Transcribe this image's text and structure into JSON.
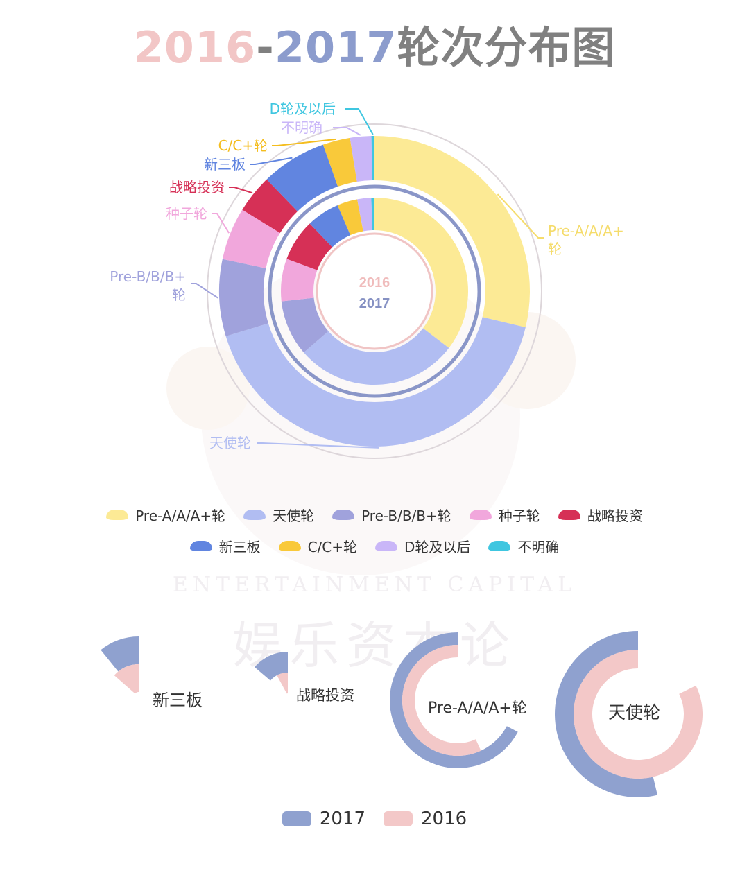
{
  "title": {
    "part1": "2016",
    "dash": "-",
    "part2": "2017",
    "part3": "轮次分布图"
  },
  "colors": {
    "title_2016": "#f2c6c6",
    "title_2017": "#8c9ccd",
    "title_rest": "#808080",
    "bar_2017": "#8fa1cf",
    "bar_2016": "#f3c8c8"
  },
  "center_labels": {
    "year_2016": "2016",
    "year_2017": "2017"
  },
  "watermark": {
    "english": "ENTERTAINMENT CAPITAL",
    "chinese": "娱乐资本论"
  },
  "chart_data": {
    "type": "donut",
    "rings": [
      "2016",
      "2017"
    ],
    "categories": [
      {
        "name": "Pre-A/A/A+轮",
        "color": "#fcea95",
        "icon": "fan-swatch"
      },
      {
        "name": "天使轮",
        "color": "#b1bdf2",
        "icon": "fan-swatch"
      },
      {
        "name": "Pre-B/B/B+轮",
        "color": "#a0a2dc",
        "icon": "fan-swatch"
      },
      {
        "name": "种子轮",
        "color": "#f1a7dc",
        "icon": "fan-swatch"
      },
      {
        "name": "战略投资",
        "color": "#d63056",
        "icon": "fan-swatch"
      },
      {
        "name": "新三板",
        "color": "#6185e0",
        "icon": "fan-swatch"
      },
      {
        "name": "C/C+轮",
        "color": "#f9c93a",
        "icon": "fan-swatch"
      },
      {
        "name": "D轮及以后",
        "color": "#c9b6f8",
        "icon": "fan-swatch"
      },
      {
        "name": "不明确",
        "color": "#3fc6e0",
        "icon": "fan-swatch"
      }
    ],
    "series": [
      {
        "name": "2016",
        "values": [
          27.3,
          39.5,
          7.6,
          5.2,
          3.8,
          6.5,
          2.7,
          2.1,
          0.3
        ]
      },
      {
        "name": "2017",
        "values": [
          32.3,
          25.8,
          8.8,
          6.7,
          6.6,
          5.2,
          3.2,
          2.2,
          0.5
        ]
      }
    ],
    "outer_labels": [
      "Pre-A/A/A+轮",
      "天使轮",
      "Pre-B/B/B+轮",
      "种子轮",
      "战略投资",
      "新三板",
      "C/C+轮",
      "D轮及以后",
      "不明确"
    ],
    "legend": [
      [
        "Pre-A/A/A+轮",
        "天使轮",
        "Pre-B/B/B+轮",
        "种子轮",
        "战略投资"
      ],
      [
        "新三板",
        "C/C+轮",
        "D轮及以后",
        "不明确"
      ]
    ]
  },
  "comparison": {
    "items": [
      {
        "label": "新三板",
        "value_2017": 5.2,
        "value_2016": 6.5
      },
      {
        "label": "战略投资",
        "value_2017": 6.6,
        "value_2016": 3.8
      },
      {
        "label": "Pre-A/A/A+轮",
        "value_2017": 32.3,
        "value_2016": 27.3
      },
      {
        "label": "天使轮",
        "value_2017": 25.8,
        "value_2016": 39.5
      }
    ],
    "legend": [
      {
        "name": "2017"
      },
      {
        "name": "2016"
      }
    ]
  }
}
